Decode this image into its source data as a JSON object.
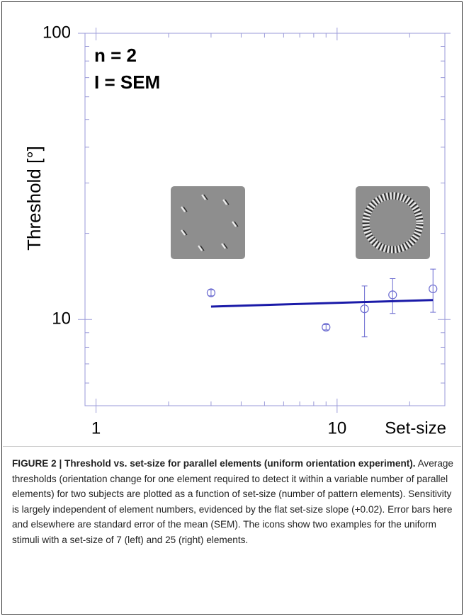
{
  "chart_data": {
    "type": "scatter",
    "xlog": true,
    "ylog": true,
    "xlim": [
      0.9,
      28
    ],
    "ylim": [
      5,
      100
    ],
    "xticks": [
      1,
      10
    ],
    "yticks": [
      10,
      100
    ],
    "xlabel": "Set-size",
    "ylabel": "Threshold [°]",
    "annotations": [
      "n = 2",
      "I = SEM"
    ],
    "axis_color": "#9a9ad8",
    "series": [
      {
        "type": "scatter",
        "color": "#6a6ad0",
        "x": [
          3,
          9,
          13,
          17,
          25
        ],
        "values": [
          12.4,
          9.4,
          10.9,
          12.2,
          12.8
        ],
        "errors": [
          0.3,
          0.2,
          2.2,
          1.7,
          2.2
        ]
      },
      {
        "type": "line",
        "color": "#1a1aa8",
        "x": [
          3,
          25
        ],
        "values": [
          11.1,
          11.7
        ]
      }
    ]
  },
  "caption": {
    "label": "FIGURE 2 | Threshold vs. set-size for parallel elements (uniform orientation experiment).",
    "text": "Average thresholds (orientation change for one element required to detect it within a variable number of parallel elements) for two subjects are plotted as a function of set-size (number of pattern elements). Sensitivity is largely independent of element numbers, evidenced by the flat set-size slope (+0.02). Error bars here and elsewhere are standard error of the mean (SEM). The icons show two examples for the uniform stimuli with a set-size of 7 (left) and 25 (right) elements."
  }
}
